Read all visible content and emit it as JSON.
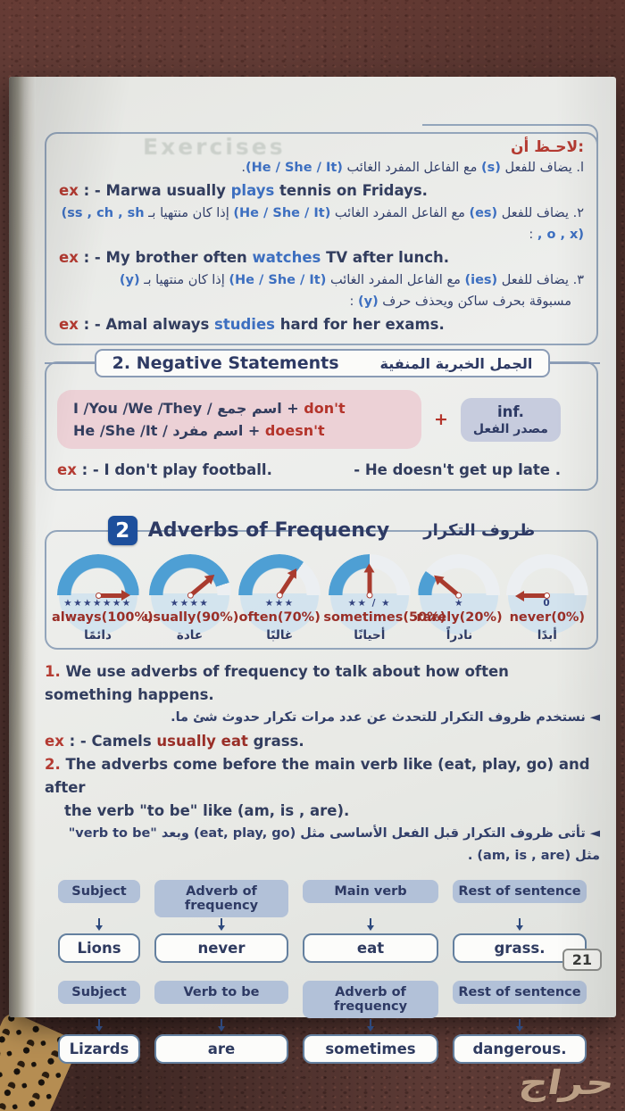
{
  "page_number": "21",
  "watermark": "حراج",
  "ghost": "Exercises",
  "colors": {
    "accent_red": "#b43b32",
    "navy_text": "#33406b",
    "highlight_blue": "#3d6fc0",
    "arc_blue": "#4e9fd4",
    "pink_box": "#ecd1d6",
    "purple_box": "#c7ccde",
    "flow_header": "#b2c1d8",
    "badge_blue": "#1d4f9c"
  },
  "note": {
    "title": "لاحـظ أن:",
    "rule1": {
      "n": "ا. ",
      "a": "يضاف للفعل ",
      "b": "(s)",
      "c": " مع الفاعل المفرد الغائب ",
      "d": "(He / She / It)",
      "e": "."
    },
    "ex1": {
      "label": "ex",
      "sep": " : - ",
      "pre": "Marwa usually ",
      "hl": "plays",
      "post": " tennis on Fridays."
    },
    "rule2": {
      "n": "٢. ",
      "a": "يضاف للفعل ",
      "b": "(es)",
      "c": " مع الفاعل المفرد الغائب ",
      "d": "(He / She / It)",
      "e": " إذا كان منتهيا بـ ",
      "f": "(ss , ch , sh , o , x)",
      "g": " :"
    },
    "ex2": {
      "label": "ex",
      "sep": " : - ",
      "pre": "My brother often ",
      "hl": "watches",
      "post": " TV after lunch."
    },
    "rule3": {
      "n": "٣. ",
      "a": "يضاف للفعل ",
      "b": "(ies)",
      "c": " مع الفاعل المفرد الغائب ",
      "d": "(He / She / It)",
      "e": " إذا كان منتهيا بـ ",
      "f": "(y)"
    },
    "rule3b": {
      "a": "مسبوقة بحرف ساكن ويحذف حرف ",
      "b": "(y)",
      "c": " :"
    },
    "ex3": {
      "label": "ex",
      "sep": " : - ",
      "pre": "Amal always ",
      "hl": "studies",
      "post": " hard for her exams."
    }
  },
  "negative": {
    "title_en": "2. Negative Statements",
    "title_ar": "الجمل الخبرية المنفية",
    "line1": {
      "a": "I /You /We /They / ",
      "ar": "اسم جمع",
      "plus": " + ",
      "hl": "don't"
    },
    "line2": {
      "a": "He /She /It / ",
      "ar": "اسم مفرد",
      "plus": " + ",
      "hl": "doesn't"
    },
    "plus": "+",
    "inf": {
      "top": "inf.",
      "bottom": "مصدر الفعل"
    },
    "ex_left": {
      "label": "ex",
      "sep": " : - ",
      "text": "I don't play football."
    },
    "ex_right": "-  He doesn't get up late ."
  },
  "adverbs": {
    "badge": "2",
    "title_en": "Adverbs of Frequency",
    "title_ar": "ظروف التكرار",
    "gauges": [
      {
        "percent": 100,
        "stars": "★★★★★★★",
        "en": "always",
        "pct_label": "(100%)",
        "ar": "دائمًا"
      },
      {
        "percent": 90,
        "stars": "★★★★",
        "en": "usually",
        "pct_label": "(90%)",
        "ar": "عادة"
      },
      {
        "percent": 70,
        "stars": "★★★",
        "en": "often",
        "pct_label": "(70%)",
        "ar": "غالبًا"
      },
      {
        "percent": 50,
        "stars": "★★ / ★",
        "en": "sometimes",
        "pct_label": "(50%)",
        "ar": "أحيانًا"
      },
      {
        "percent": 20,
        "stars": "★",
        "en": "rarely",
        "pct_label": "(20%)",
        "ar": "نادراً"
      },
      {
        "percent": 0,
        "stars": "0",
        "en": "never",
        "pct_label": "(0%)",
        "ar": "أبدًا"
      }
    ],
    "point1": {
      "num": "1. ",
      "text": "We use adverbs of frequency to talk about how often something happens."
    },
    "point1_ar": "◄ نستخدم ظروف التكرار للتحدث عن عدد مرات تكرار حدوث شئ ما.",
    "ex": {
      "label": "ex",
      "sep": " : - ",
      "pre": "Camels ",
      "hl": "usually eat",
      "post": " grass."
    },
    "point2": {
      "num": "2. ",
      "line1": "The adverbs come before the main verb like (eat, play, go) and after",
      "line2": "the verb \"to be\" like (am, is , are)."
    },
    "point2_ar": {
      "ar_a": "◄ تأتى ظروف التكرار قبل الفعل الأساسى مثل ",
      "en_a": "(eat, play, go)",
      "ar_b": " وبعد ",
      "en_b": "\"verb to be\"",
      "ar_c": " مثل ",
      "en_c": "(am, is , are)",
      "ar_d": " ."
    }
  },
  "flow": {
    "rows": [
      {
        "headers": [
          "Subject",
          "Adverb of frequency",
          "Main verb",
          "Rest of sentence"
        ],
        "values": [
          "Lions",
          "never",
          "eat",
          "grass."
        ]
      },
      {
        "headers": [
          "Subject",
          "Verb to be",
          "Adverb of frequency",
          "Rest of sentence"
        ],
        "values": [
          "Lizards",
          "are",
          "sometimes",
          "dangerous."
        ]
      }
    ]
  }
}
